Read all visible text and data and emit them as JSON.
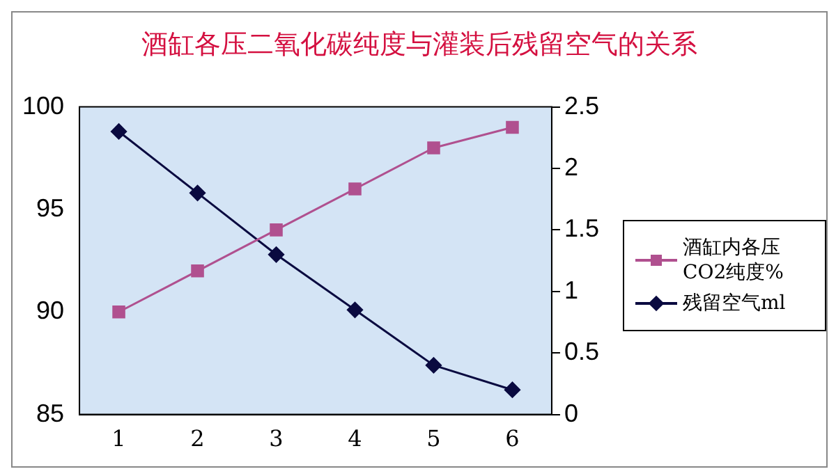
{
  "chart_data": {
    "type": "line",
    "title": "酒缸各压二氧化碳纯度与灌装后残留空气的关系",
    "categories": [
      "1",
      "2",
      "3",
      "4",
      "5",
      "6"
    ],
    "series": [
      {
        "name": "酒缸内各压CO2纯度%",
        "color": "#b0508f",
        "values": [
          90,
          92,
          94,
          96,
          98,
          99
        ],
        "marker": "square"
      },
      {
        "name": "残留空气ml",
        "color": "#0a0a40",
        "values": [
          2.3,
          1.8,
          1.3,
          0.85,
          0.4,
          0.2
        ],
        "axis": "y2",
        "marker": "diamond"
      }
    ],
    "ylim": [
      85,
      100
    ],
    "yticks": [
      85,
      90,
      95,
      100
    ],
    "y2lim": [
      0,
      2.5
    ],
    "y2ticks": [
      0,
      0.5,
      1,
      1.5,
      2,
      2.5
    ],
    "grid": false,
    "legend": "right"
  }
}
